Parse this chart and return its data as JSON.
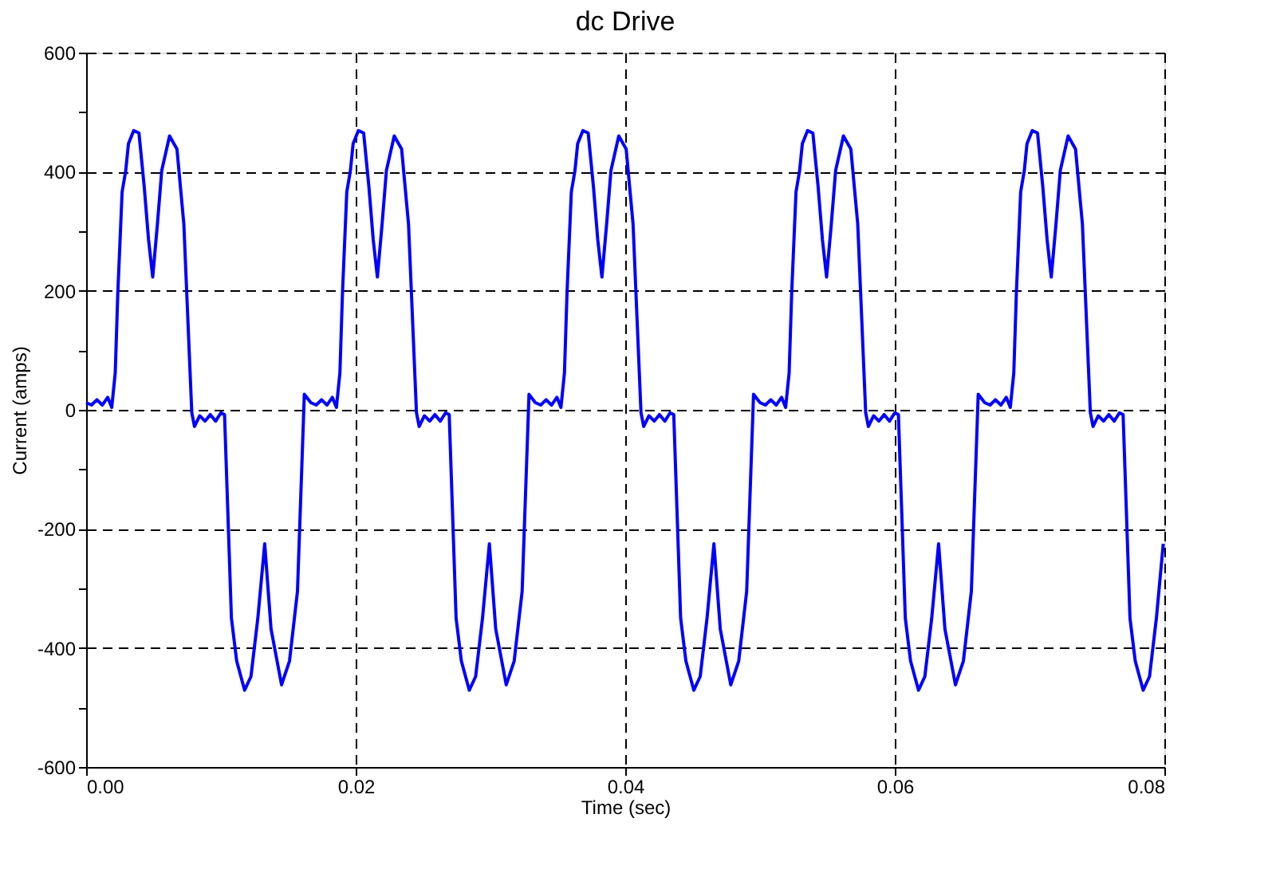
{
  "chart_data": {
    "type": "line",
    "title": "dc Drive",
    "xlabel": "Time (sec)",
    "ylabel": "Current (amps)",
    "xlim": [
      0,
      0.08
    ],
    "ylim": [
      -600,
      600
    ],
    "xticks": [
      {
        "value": 0,
        "label": "0.00"
      },
      {
        "value": 0.02,
        "label": "0.02"
      },
      {
        "value": 0.04,
        "label": "0.04"
      },
      {
        "value": 0.06,
        "label": "0.06"
      },
      {
        "value": 0.08,
        "label": "0.08"
      }
    ],
    "yticks": [
      -600,
      {
        "value": -500,
        "label": null
      },
      -400,
      {
        "value": -300,
        "label": null
      },
      -200,
      {
        "value": -100,
        "label": null
      },
      0,
      {
        "value": 100,
        "label": null
      },
      200,
      {
        "value": 300,
        "label": null
      },
      400,
      {
        "value": 500,
        "label": null
      },
      600
    ],
    "grid": true,
    "marker": "none",
    "line_style": "solid",
    "x": [
      0,
      0.0004,
      0.0008,
      0.0012,
      0.0016,
      0.0019,
      0.00216,
      0.00235,
      0.00267,
      0.00294,
      0.00314,
      0.00353,
      0.00392,
      0.00431,
      0.00463,
      0.00494,
      0.00529,
      0.00561,
      0.00619,
      0.00674,
      0.00725,
      0.00784,
      0.00804,
      0.00843,
      0.00882,
      0.00921,
      0.00961,
      0.01,
      0.01027,
      0.0105,
      0.01078,
      0.01117,
      0.01176,
      0.01223,
      0.01274,
      0.01325,
      0.01372,
      0.0145,
      0.01509,
      0.01568,
      0.01619,
      0.01667,
      0.01707,
      0.01747,
      0.01787,
      0.01827,
      0.01857,
      0.01883,
      0.01902,
      0.01934,
      0.01961,
      0.01981,
      0.0202,
      0.02059,
      0.02098,
      0.0213,
      0.02161,
      0.02196,
      0.02228,
      0.02286,
      0.02341,
      0.02392,
      0.02451,
      0.02471,
      0.0251,
      0.02549,
      0.02588,
      0.02628,
      0.02667,
      0.02694,
      0.02717,
      0.02745,
      0.02784,
      0.02843,
      0.0289,
      0.02941,
      0.02992,
      0.03039,
      0.03117,
      0.03176,
      0.03235,
      0.03286,
      0.03333,
      0.03373,
      0.03413,
      0.03453,
      0.03493,
      0.03523,
      0.03549,
      0.03568,
      0.036,
      0.03627,
      0.03647,
      0.03686,
      0.03725,
      0.03764,
      0.03796,
      0.03827,
      0.03862,
      0.03894,
      0.03952,
      0.04007,
      0.04058,
      0.04117,
      0.04137,
      0.04176,
      0.04215,
      0.04254,
      0.04294,
      0.04333,
      0.0436,
      0.04383,
      0.04411,
      0.0445,
      0.04509,
      0.04556,
      0.04607,
      0.04658,
      0.04705,
      0.04783,
      0.04842,
      0.04901,
      0.04952,
      0.05,
      0.0504,
      0.0508,
      0.0512,
      0.0516,
      0.0519,
      0.05216,
      0.05235,
      0.05267,
      0.05294,
      0.05314,
      0.05353,
      0.05392,
      0.05431,
      0.05463,
      0.05494,
      0.05529,
      0.05561,
      0.05619,
      0.05674,
      0.05725,
      0.05784,
      0.05804,
      0.05843,
      0.05882,
      0.05921,
      0.05961,
      0.06,
      0.06027,
      0.0605,
      0.06078,
      0.06117,
      0.06176,
      0.06223,
      0.06274,
      0.06325,
      0.06372,
      0.0645,
      0.06509,
      0.06568,
      0.06619,
      0.06667,
      0.06707,
      0.06747,
      0.06787,
      0.06827,
      0.06857,
      0.06883,
      0.06902,
      0.06934,
      0.06961,
      0.06981,
      0.0702,
      0.07059,
      0.07098,
      0.0713,
      0.07161,
      0.07196,
      0.07228,
      0.07286,
      0.07341,
      0.07392,
      0.07451,
      0.07471,
      0.0751,
      0.07549,
      0.07588,
      0.07628,
      0.07667,
      0.07694,
      0.07717,
      0.07745,
      0.07784,
      0.07843,
      0.0789,
      0.07941,
      0.07992
    ],
    "series": [
      {
        "color": "#0000ff",
        "values": [
          12,
          8,
          17,
          8,
          21,
          4,
          62,
          196,
          366,
          402,
          447,
          469,
          465,
          375,
          286,
          223,
          312,
          402,
          460,
          438,
          312,
          -5,
          -28,
          -10,
          -19,
          -8,
          -19,
          -5,
          -8,
          -162,
          -350,
          -422,
          -471,
          -448,
          -350,
          -225,
          -368,
          -462,
          -422,
          -305,
          26,
          12,
          8,
          17,
          8,
          21,
          4,
          62,
          196,
          366,
          402,
          447,
          469,
          465,
          375,
          286,
          223,
          312,
          402,
          460,
          438,
          312,
          -5,
          -28,
          -10,
          -19,
          -8,
          -19,
          -5,
          -8,
          -162,
          -350,
          -422,
          -471,
          -448,
          -350,
          -225,
          -368,
          -462,
          -422,
          -305,
          26,
          12,
          8,
          17,
          8,
          21,
          4,
          62,
          196,
          366,
          402,
          447,
          469,
          465,
          375,
          286,
          223,
          312,
          402,
          460,
          438,
          312,
          -5,
          -28,
          -10,
          -19,
          -8,
          -19,
          -5,
          -8,
          -162,
          -350,
          -422,
          -471,
          -448,
          -350,
          -225,
          -368,
          -462,
          -422,
          -305,
          26,
          12,
          8,
          17,
          8,
          21,
          4,
          62,
          196,
          366,
          402,
          447,
          469,
          465,
          375,
          286,
          223,
          312,
          402,
          460,
          438,
          312,
          -5,
          -28,
          -10,
          -19,
          -8,
          -19,
          -5,
          -8,
          -162,
          -350,
          -422,
          -471,
          -448,
          -350,
          -225,
          -368,
          -462,
          -422,
          -305,
          26,
          12,
          8,
          17,
          8,
          21,
          4,
          62,
          196,
          366,
          402,
          447,
          469,
          465,
          375,
          286,
          223,
          312,
          402,
          460,
          438,
          312,
          -5,
          -28,
          -10,
          -19,
          -8,
          -19,
          -5,
          -8,
          -162,
          -350,
          -422,
          -471,
          -448,
          -350,
          -225
        ]
      }
    ]
  }
}
